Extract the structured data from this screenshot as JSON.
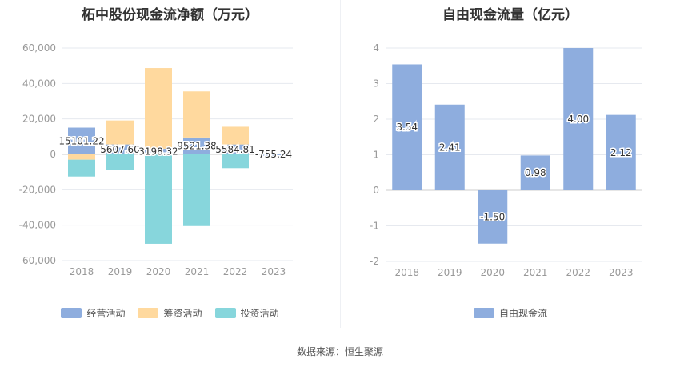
{
  "colors": {
    "operating": "#8eadde",
    "financing": "#ffd99e",
    "investing": "#87d6dc",
    "free_cash_flow": "#8eadde",
    "grid": "#e6e9ef",
    "axis_text": "#999999",
    "label_text": "#333333"
  },
  "chart_data": [
    {
      "type": "bar",
      "stacked": true,
      "title": "柘中股份现金流净额（万元）",
      "xlabel": "",
      "ylabel": "",
      "categories": [
        "2018",
        "2019",
        "2020",
        "2021",
        "2022",
        "2023"
      ],
      "ylim": [
        -60000,
        60000
      ],
      "yticks": [
        -60000,
        -40000,
        -20000,
        0,
        20000,
        40000,
        60000
      ],
      "ytick_labels": [
        "-60,000",
        "-40,000",
        "-20,000",
        "0",
        "20,000",
        "40,000",
        "60,000"
      ],
      "series": [
        {
          "name": "经营活动",
          "color_key": "operating",
          "values": [
            15101.22,
            5607.6,
            3198.32,
            9521.38,
            5584.81,
            -755.24
          ]
        },
        {
          "name": "筹资活动",
          "color_key": "financing",
          "values": [
            -3000,
            13500,
            45500,
            26000,
            10000,
            0
          ]
        },
        {
          "name": "投资活动",
          "color_key": "investing",
          "values": [
            -9500,
            -9000,
            -50500,
            -40500,
            -7800,
            0
          ]
        }
      ],
      "data_labels": [
        "15101.22",
        "5607.60",
        "3198.32",
        "9521.38",
        "5584.81",
        "-755.24"
      ],
      "grid": true,
      "legend_position": "bottom"
    },
    {
      "type": "bar",
      "title": "自由现金流量（亿元）",
      "xlabel": "",
      "ylabel": "",
      "categories": [
        "2018",
        "2019",
        "2020",
        "2021",
        "2022",
        "2023"
      ],
      "ylim": [
        -2,
        4
      ],
      "yticks": [
        -2,
        -1,
        0,
        1,
        2,
        3,
        4
      ],
      "ytick_labels": [
        "-2",
        "-1",
        "0",
        "1",
        "2",
        "3",
        "4"
      ],
      "series": [
        {
          "name": "自由现金流",
          "color_key": "free_cash_flow",
          "values": [
            3.54,
            2.41,
            -1.5,
            0.98,
            4.0,
            2.12
          ]
        }
      ],
      "data_labels": [
        "3.54",
        "2.41",
        "-1.50",
        "0.98",
        "4.00",
        "2.12"
      ],
      "grid": true,
      "legend_position": "bottom"
    }
  ],
  "source_text": "数据来源：恒生聚源"
}
